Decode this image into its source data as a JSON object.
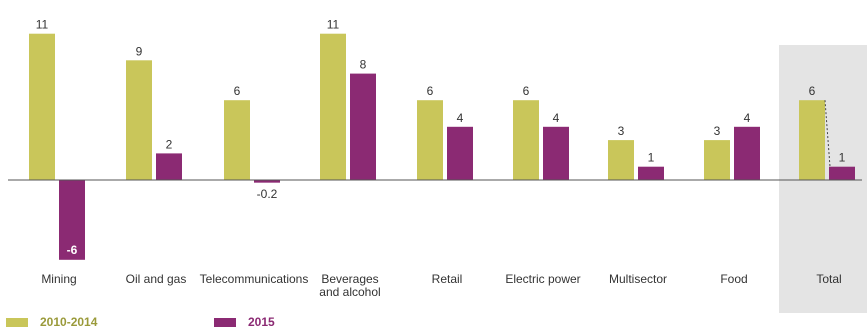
{
  "chart_data": {
    "type": "bar",
    "categories": [
      "Mining",
      "Oil and gas",
      "Telecommunications",
      "Beverages|and alcohol",
      "Retail",
      "Electric power",
      "Multisector",
      "Food",
      "Total"
    ],
    "series": [
      {
        "name": "2010-2014",
        "values": [
          11,
          9,
          6,
          11,
          6,
          6,
          3,
          3,
          6
        ],
        "labels": [
          "11",
          "9",
          "6",
          "11",
          "6",
          "6",
          "3",
          "3",
          "6"
        ]
      },
      {
        "name": "2015",
        "values": [
          -6,
          2,
          -0.2,
          8,
          4,
          4,
          1,
          4,
          1
        ],
        "labels": [
          "-6",
          "2",
          "-0.2",
          "8",
          "4",
          "4",
          "1",
          "4",
          "1"
        ]
      }
    ],
    "title": "",
    "xlabel": "",
    "ylabel": "",
    "ylim": [
      -6,
      11
    ],
    "grid": false,
    "legend_position": "bottom-left",
    "highlighted_category": "Total"
  },
  "colors": {
    "series_1": "#c9c65a",
    "series_2": "#8b2a73",
    "highlight_bg": "#e4e4e4",
    "axis": "#555555"
  }
}
